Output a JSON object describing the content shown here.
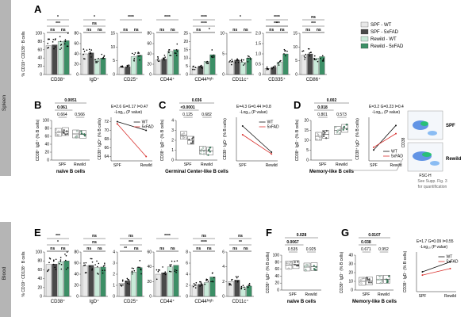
{
  "colors": {
    "spf_wt": "#e8e8e8",
    "spf_5xfad": "#4a4a4a",
    "rewild_wt": "#c9ead9",
    "rewild_5xfad": "#3c8f66",
    "wt_line": "#111111",
    "fad_line": "#d9312e",
    "spleen_band": "#a9a9a9",
    "blood_band": "#a9a9a9"
  },
  "section_labels": {
    "spleen": "Spleen",
    "blood": "Blood"
  },
  "legend": {
    "items": [
      "SPF - WT",
      "SPF - 5xFAD",
      "Rewild - WT",
      "Rewild - 5xFAD"
    ]
  },
  "flow": {
    "labels": {
      "spf": "SPF",
      "rewild": "Rewild",
      "y": "CD38",
      "x": "FSC-H"
    },
    "note": [
      "See Supp. Fig. 3",
      "for quantification"
    ]
  },
  "chart_data": [
    {
      "panel": "A",
      "type": "bar",
      "ylabel": "% CD19⁺ CD138⁻ B cells",
      "groups": [
        "SPF - WT",
        "SPF - 5xFAD",
        "Rewild - WT",
        "Rewild - 5xFAD"
      ],
      "subplots": [
        {
          "label": "CD38⁺",
          "yticks": [
            "0",
            "20",
            "40",
            "60",
            "80",
            "100"
          ],
          "ylim": [
            0,
            100
          ],
          "values": [
            70,
            72,
            80,
            82
          ],
          "sig": [
            {
              "text": "***",
              "level": 2
            },
            {
              "text": "*",
              "level": 3
            },
            {
              "text": "ns",
              "level": 1
            },
            {
              "text": "ns",
              "level": 1
            }
          ]
        },
        {
          "label": "IgD⁺",
          "yticks": [
            "0",
            "20",
            "40",
            "60",
            "80"
          ],
          "ylim": [
            0,
            80
          ],
          "values": [
            40,
            42,
            30,
            32
          ],
          "sig": [
            {
              "text": "ns",
              "level": 2
            },
            {
              "text": "*",
              "level": 3
            },
            {
              "text": "ns",
              "level": 1
            },
            {
              "text": "ns",
              "level": 1
            }
          ]
        },
        {
          "label": "CD25⁺",
          "yticks": [
            "0",
            "5",
            "10",
            "15"
          ],
          "ylim": [
            0,
            15
          ],
          "values": [
            2.5,
            2.8,
            6.5,
            7
          ],
          "sig": [
            {
              "text": "****",
              "level": 3
            },
            {
              "text": "ns",
              "level": 1
            },
            {
              "text": "ns",
              "level": 1
            }
          ]
        },
        {
          "label": "CD44⁺",
          "yticks": [
            "0",
            "20",
            "40",
            "60",
            "80"
          ],
          "ylim": [
            0,
            80
          ],
          "values": [
            28,
            30,
            45,
            48
          ],
          "sig": [
            {
              "text": "****",
              "level": 3
            },
            {
              "text": "ns",
              "level": 1
            },
            {
              "text": "ns",
              "level": 1
            }
          ]
        },
        {
          "label": "CD44ʰⁱᵍʰ",
          "yticks": [
            "0",
            "5",
            "10",
            "15",
            "20",
            "25"
          ],
          "ylim": [
            0,
            25
          ],
          "values": [
            4,
            5,
            8,
            12
          ],
          "sig": [
            {
              "text": "****",
              "level": 3
            },
            {
              "text": "****",
              "level": 2
            },
            {
              "text": "ns",
              "level": 1
            },
            {
              "text": "*",
              "level": 1
            }
          ]
        },
        {
          "label": "CD11c⁺",
          "yticks": [
            "0",
            "5",
            "10"
          ],
          "ylim": [
            0,
            10
          ],
          "values": [
            3,
            3.5,
            3,
            4
          ],
          "sig": [
            {
              "text": "*",
              "level": 3
            },
            {
              "text": "ns",
              "level": 1
            },
            {
              "text": "ns",
              "level": 1
            }
          ]
        },
        {
          "label": "CD335⁺",
          "yticks": [
            "0",
            "0.5",
            "1.0",
            "1.5",
            "2.0"
          ],
          "ylim": [
            0,
            2
          ],
          "values": [
            0.3,
            0.35,
            0.6,
            1.0
          ],
          "sig": [
            {
              "text": "****",
              "level": 3
            },
            {
              "text": "*",
              "level": 2
            },
            {
              "text": "****",
              "level": 2
            },
            {
              "text": "ns",
              "level": 1
            },
            {
              "text": "ns",
              "level": 1
            }
          ]
        },
        {
          "label": "CD86⁺",
          "yticks": [
            "0",
            "5",
            "10",
            "15"
          ],
          "ylim": [
            0,
            15
          ],
          "values": [
            7,
            7.5,
            6,
            6.5
          ],
          "sig": [
            {
              "text": "ns",
              "level": 3
            },
            {
              "text": "***",
              "level": 2
            },
            {
              "text": "ns",
              "level": 1
            },
            {
              "text": "ns",
              "level": 1
            }
          ]
        }
      ]
    },
    {
      "panel": "B",
      "type": "bar",
      "xlabel": "naïve B cells",
      "ylabel": "CD38⁺ IgD⁺ (% B cells)",
      "categories": [
        "SPF",
        "Rewild"
      ],
      "yticks": [
        "0",
        "20",
        "40",
        "60",
        "80",
        "100"
      ],
      "values": {
        "SPF": [
          70,
          72
        ],
        "Rewild": [
          66,
          65
        ]
      },
      "pvalues": [
        "0.0051",
        "0.061",
        "0.664",
        "0.566"
      ],
      "interaction": {
        "stats": "E=2.6  G=0.17  I=0.47",
        "sub": "-Log₁₀ (P value)",
        "ylabel": "CD38⁺ IgD⁺ (% B cells)",
        "yticks": [
          "64",
          "66",
          "68",
          "70",
          "72"
        ],
        "ylim": [
          63,
          73
        ],
        "x": [
          "SPF",
          "Rewild"
        ],
        "series": [
          {
            "name": "WT",
            "values": [
              72,
              70
            ]
          },
          {
            "name": "5xFAD",
            "values": [
              71.5,
              64
            ]
          }
        ]
      }
    },
    {
      "panel": "C",
      "type": "bar",
      "xlabel": "Germinal Center-like B cells",
      "ylabel": "CD38⁻ IgD⁻ (% B cells)",
      "categories": [
        "SPF",
        "Rewild"
      ],
      "yticks": [
        "0",
        "1",
        "2",
        "3",
        "4"
      ],
      "values": {
        "SPF": [
          2.5,
          2.0
        ],
        "Rewild": [
          1.0,
          0.9
        ]
      },
      "pvalues": [
        "0.036",
        "<0.0001",
        "0.125",
        "0.682"
      ],
      "interaction": {
        "stats": "E=4.3  G=0.44  I=0.8",
        "sub": "-Log₁₀ (P value)",
        "ylabel": "CD38⁻ IgD⁻ (% B cells)",
        "ylim": [
          0.5,
          3
        ],
        "x": [
          "SPF",
          "Rewild"
        ],
        "series": [
          {
            "name": "WT",
            "values": [
              2.5,
              1.0
            ]
          },
          {
            "name": "5xFAD",
            "values": [
              2.0,
              0.9
            ]
          }
        ]
      }
    },
    {
      "panel": "D",
      "type": "bar",
      "xlabel": "Memory-like B cells",
      "ylabel": "CD38⁺ IgD⁻ (% B cells)",
      "categories": [
        "SPF",
        "Rewild"
      ],
      "yticks": [
        "0",
        "5",
        "10",
        "15",
        "20"
      ],
      "values": {
        "SPF": [
          12,
          13
        ],
        "Rewild": [
          15,
          16
        ]
      },
      "pvalues": [
        "0.002",
        "0.018",
        "0.801",
        "0.573"
      ],
      "interaction": {
        "stats": "E=3.2  G=0.23  I=0.4",
        "sub": "-Log₁₀ (P value)",
        "ylabel": "CD38⁺ IgD⁻ (% B cells)",
        "ylim": [
          10,
          18
        ],
        "x": [
          "SPF",
          "Rewild"
        ],
        "series": [
          {
            "name": "WT",
            "values": [
              12,
              16.5
            ]
          },
          {
            "name": "5xFAD",
            "values": [
              12.5,
              15
            ]
          }
        ]
      }
    },
    {
      "panel": "E",
      "type": "bar",
      "ylabel": "% CD19⁺ CD138⁻ B cells",
      "groups": [
        "SPF - WT",
        "SPF - 5xFAD",
        "Rewild - WT",
        "Rewild - 5xFAD"
      ],
      "subplots": [
        {
          "label": "CD38⁺",
          "yticks": [
            "0",
            "20",
            "40",
            "60",
            "80",
            "100"
          ],
          "ylim": [
            0,
            100
          ],
          "values": [
            72,
            73,
            78,
            80
          ],
          "sig": [
            {
              "text": "***",
              "level": 3
            },
            {
              "text": "*",
              "level": 2
            },
            {
              "text": "ns",
              "level": 1
            },
            {
              "text": "ns",
              "level": 1
            }
          ]
        },
        {
          "label": "IgD⁺",
          "yticks": [
            "0",
            "20",
            "40",
            "60",
            "80"
          ],
          "ylim": [
            0,
            80
          ],
          "values": [
            55,
            56,
            52,
            53
          ],
          "sig": [
            {
              "text": "ns",
              "level": 3
            },
            {
              "text": "ns",
              "level": 2
            },
            {
              "text": "ns",
              "level": 1
            },
            {
              "text": "ns",
              "level": 1
            }
          ]
        },
        {
          "label": "CD25⁺",
          "yticks": [
            "0",
            "1",
            "2",
            "3",
            "4"
          ],
          "ylim": [
            0,
            4
          ],
          "values": [
            1.2,
            1.4,
            2.2,
            2.6
          ],
          "sig": [
            {
              "text": "ns",
              "level": 3
            },
            {
              "text": "***",
              "level": 2
            },
            {
              "text": "**",
              "level": 1
            },
            {
              "text": "ns",
              "level": 1
            }
          ]
        },
        {
          "label": "CD44⁺",
          "yticks": [
            "0",
            "20",
            "40",
            "60"
          ],
          "ylim": [
            0,
            60
          ],
          "values": [
            30,
            32,
            40,
            42
          ],
          "sig": [
            {
              "text": "****",
              "level": 3
            },
            {
              "text": "ns",
              "level": 1
            },
            {
              "text": "ns",
              "level": 1
            }
          ]
        },
        {
          "label": "CD44ʰⁱᵍʰ",
          "yticks": [
            "0",
            "2",
            "4",
            "6",
            "8"
          ],
          "ylim": [
            0,
            8
          ],
          "values": [
            2,
            2.2,
            2.5,
            3.5
          ],
          "sig": [
            {
              "text": "ns",
              "level": 3
            },
            {
              "text": "****",
              "level": 2
            },
            {
              "text": "ns",
              "level": 1
            },
            {
              "text": "ns",
              "level": 1
            }
          ]
        },
        {
          "label": "CD11c⁺",
          "yticks": [
            "0",
            "2",
            "4",
            "6"
          ],
          "ylim": [
            0,
            6
          ],
          "values": [
            2,
            2.2,
            1.2,
            1.4
          ],
          "sig": [
            {
              "text": "ns",
              "level": 3
            },
            {
              "text": "**",
              "level": 2
            },
            {
              "text": "ns",
              "level": 1
            },
            {
              "text": "ns",
              "level": 1
            }
          ]
        }
      ]
    },
    {
      "panel": "F",
      "type": "bar",
      "xlabel": "naïve B cells",
      "ylabel": "CD38⁺ IgD⁺ (% B cells)",
      "categories": [
        "SPF",
        "Rewild"
      ],
      "yticks": [
        "0",
        "20",
        "40",
        "60",
        "80",
        "100"
      ],
      "values": {
        "SPF": [
          72,
          73
        ],
        "Rewild": [
          66,
          67
        ]
      },
      "pvalues": [
        "0.028",
        "0.0067",
        "0.535",
        "0.925"
      ]
    },
    {
      "panel": "G",
      "type": "bar",
      "xlabel": "Memory-like B cells",
      "ylabel": "CD38⁺ IgD⁻ (% B cells)",
      "categories": [
        "SPF",
        "Rewild"
      ],
      "yticks": [
        "0",
        "10",
        "20",
        "30",
        "40"
      ],
      "values": {
        "SPF": [
          10,
          10.5
        ],
        "Rewild": [
          12,
          12.5
        ]
      },
      "pvalues": [
        "0.0107",
        "0.038",
        "0.671",
        "0.952"
      ],
      "interaction": {
        "stats": "E=1.7  G=0.09  I=0.55",
        "sub": "-Log₁₀ (P value)",
        "ylabel": "CD38⁺ IgD⁻ (% B cells)",
        "ylim": [
          8,
          14
        ],
        "x": [
          "SPF",
          "Rewild"
        ],
        "series": [
          {
            "name": "WT",
            "values": [
              11,
              12.5
            ]
          },
          {
            "name": "5xFAD",
            "values": [
              10.5,
              11.5
            ]
          }
        ]
      }
    }
  ]
}
